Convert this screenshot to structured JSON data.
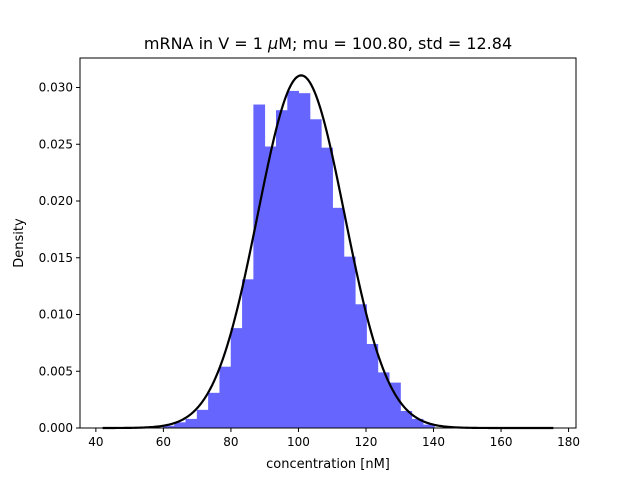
{
  "chart_data": {
    "type": "bar",
    "title_parts": {
      "prefix": "mRNA in V = 1 ",
      "mu_symbol": "μ",
      "suffix": "M; mu = 100.80,  std = 12.84"
    },
    "xlabel": "concentration [nM]",
    "ylabel": "Density",
    "xlim": [
      35.3,
      182.2
    ],
    "ylim": [
      0.0,
      0.0326
    ],
    "x_ticks": [
      40,
      60,
      80,
      100,
      120,
      140,
      160,
      180
    ],
    "x_tick_labels": [
      "40",
      "60",
      "80",
      "100",
      "120",
      "140",
      "160",
      "180"
    ],
    "y_ticks": [
      0.0,
      0.005,
      0.01,
      0.015,
      0.02,
      0.025,
      0.03
    ],
    "y_tick_labels": [
      "0.000",
      "0.005",
      "0.010",
      "0.015",
      "0.020",
      "0.025",
      "0.030"
    ],
    "histogram": {
      "color": "#6666ff",
      "bins": [
        {
          "x0": 59.85,
          "x1": 63.2,
          "density": 0.0002
        },
        {
          "x0": 63.2,
          "x1": 66.55,
          "density": 0.0005
        },
        {
          "x0": 66.55,
          "x1": 69.9,
          "density": 0.0008
        },
        {
          "x0": 69.9,
          "x1": 73.25,
          "density": 0.0016
        },
        {
          "x0": 73.25,
          "x1": 76.6,
          "density": 0.0031
        },
        {
          "x0": 76.6,
          "x1": 79.95,
          "density": 0.0054
        },
        {
          "x0": 79.95,
          "x1": 83.3,
          "density": 0.0088
        },
        {
          "x0": 83.3,
          "x1": 86.65,
          "density": 0.0131
        },
        {
          "x0": 86.65,
          "x1": 90.0,
          "density": 0.0285
        },
        {
          "x0": 90.0,
          "x1": 93.35,
          "density": 0.0248
        },
        {
          "x0": 93.35,
          "x1": 96.7,
          "density": 0.028
        },
        {
          "x0": 96.7,
          "x1": 100.05,
          "density": 0.0297
        },
        {
          "x0": 100.05,
          "x1": 103.4,
          "density": 0.0295
        },
        {
          "x0": 103.4,
          "x1": 106.75,
          "density": 0.0272
        },
        {
          "x0": 106.75,
          "x1": 110.1,
          "density": 0.0247
        },
        {
          "x0": 110.1,
          "x1": 113.45,
          "density": 0.0194
        },
        {
          "x0": 113.45,
          "x1": 116.8,
          "density": 0.0151
        },
        {
          "x0": 116.8,
          "x1": 120.15,
          "density": 0.0109
        },
        {
          "x0": 120.15,
          "x1": 123.5,
          "density": 0.0074
        },
        {
          "x0": 123.5,
          "x1": 126.85,
          "density": 0.0049
        },
        {
          "x0": 126.85,
          "x1": 130.2,
          "density": 0.004
        },
        {
          "x0": 130.2,
          "x1": 133.55,
          "density": 0.0015
        },
        {
          "x0": 133.55,
          "x1": 136.9,
          "density": 0.0008
        },
        {
          "x0": 136.9,
          "x1": 140.25,
          "density": 0.0003
        }
      ]
    },
    "normal_curve": {
      "mu": 100.8,
      "std": 12.84,
      "x_range": [
        42,
        175.5
      ],
      "color": "#000000"
    }
  }
}
